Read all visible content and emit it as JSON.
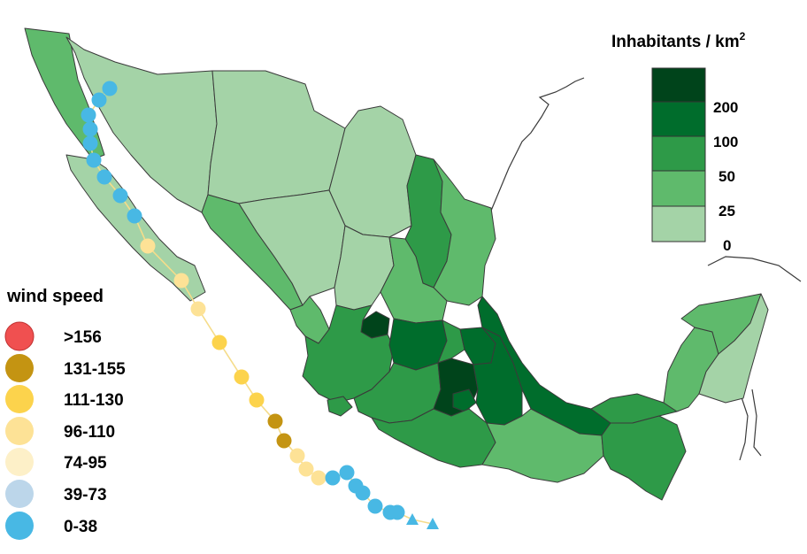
{
  "density_legend": {
    "title": "Inhabitants / km",
    "title_sup": "2",
    "bins": [
      {
        "label": "",
        "color": "#00441b"
      },
      {
        "label": "200",
        "color": "#006d2c"
      },
      {
        "label": "100",
        "color": "#2e9a48"
      },
      {
        "label": "50",
        "color": "#5fba6c"
      },
      {
        "label": "25",
        "color": "#a4d3a7"
      },
      {
        "label": "0",
        "color": ""
      }
    ]
  },
  "wind_legend": {
    "title": "wind speed",
    "classes": [
      {
        "label": ">156",
        "color": "#f05050"
      },
      {
        "label": "131-155",
        "color": "#c49412"
      },
      {
        "label": "111-130",
        "color": "#fcd34c"
      },
      {
        "label": "96-110",
        "color": "#fde296"
      },
      {
        "label": "74-95",
        "color": "#fdf0c8"
      },
      {
        "label": "39-73",
        "color": "#bcd6ea"
      },
      {
        "label": "0-38",
        "color": "#48b8e4"
      }
    ]
  },
  "storm_track": [
    {
      "cls": 6,
      "shape": "circle"
    },
    {
      "cls": 6,
      "shape": "circle"
    },
    {
      "cls": 6,
      "shape": "circle"
    },
    {
      "cls": 6,
      "shape": "circle"
    },
    {
      "cls": 6,
      "shape": "circle"
    },
    {
      "cls": 6,
      "shape": "circle"
    },
    {
      "cls": 6,
      "shape": "circle"
    },
    {
      "cls": 6,
      "shape": "circle"
    },
    {
      "cls": 6,
      "shape": "circle"
    },
    {
      "cls": 3,
      "shape": "circle"
    },
    {
      "cls": 3,
      "shape": "circle"
    },
    {
      "cls": 3,
      "shape": "circle"
    },
    {
      "cls": 2,
      "shape": "circle"
    },
    {
      "cls": 2,
      "shape": "circle"
    },
    {
      "cls": 2,
      "shape": "circle"
    },
    {
      "cls": 1,
      "shape": "circle"
    },
    {
      "cls": 1,
      "shape": "circle"
    },
    {
      "cls": 3,
      "shape": "circle"
    },
    {
      "cls": 3,
      "shape": "circle"
    },
    {
      "cls": 3,
      "shape": "circle"
    },
    {
      "cls": 6,
      "shape": "circle"
    },
    {
      "cls": 6,
      "shape": "circle"
    },
    {
      "cls": 6,
      "shape": "circle"
    },
    {
      "cls": 6,
      "shape": "circle"
    },
    {
      "cls": 6,
      "shape": "circle"
    },
    {
      "cls": 6,
      "shape": "circle"
    },
    {
      "cls": 6,
      "shape": "circle"
    },
    {
      "cls": 6,
      "shape": "triangle"
    },
    {
      "cls": 6,
      "shape": "triangle"
    }
  ]
}
